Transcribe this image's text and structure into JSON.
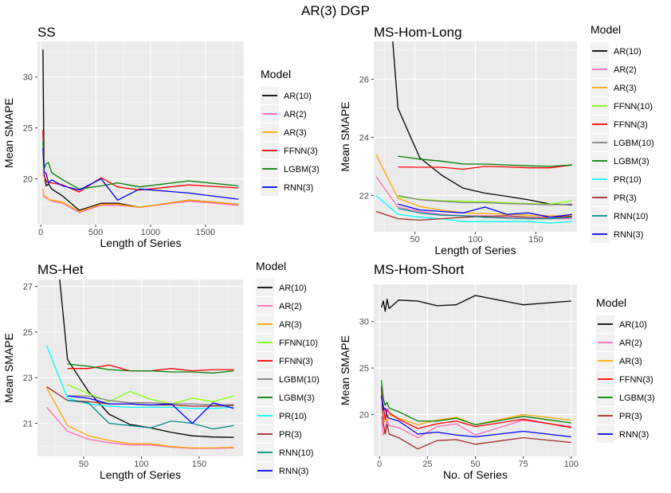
{
  "figure": {
    "title": "AR(3) DGP"
  },
  "chart_data": [
    {
      "type": "line",
      "title": "SS",
      "xlabel": "Length of Series",
      "ylabel": "Mean SMAPE",
      "xlim": [
        -30,
        1850
      ],
      "ylim": [
        15.5,
        33.5
      ],
      "xticks": [
        0,
        500,
        1000,
        1500
      ],
      "yticks": [
        20,
        25,
        30
      ],
      "legend_title": "Model",
      "series": [
        {
          "name": "AR(10)",
          "color": "#000000",
          "x": [
            20,
            30,
            50,
            70,
            100,
            200,
            350,
            550,
            700,
            900,
            1350,
            1800
          ],
          "y": [
            32.7,
            20.5,
            19.3,
            19.5,
            19.0,
            18.3,
            16.9,
            17.6,
            17.6,
            17.2,
            17.9,
            17.5
          ]
        },
        {
          "name": "AR(2)",
          "color": "#ff69b4",
          "x": [
            20,
            30,
            50,
            70,
            100,
            200,
            350,
            550,
            700,
            900,
            1350,
            1800
          ],
          "y": [
            18.5,
            18.2,
            18.1,
            18.0,
            17.8,
            17.6,
            16.7,
            17.4,
            17.4,
            17.2,
            17.8,
            17.4
          ]
        },
        {
          "name": "AR(3)",
          "color": "#ffa500",
          "x": [
            20,
            30,
            50,
            70,
            100,
            200,
            350,
            550,
            700,
            900,
            1350,
            1800
          ],
          "y": [
            19.0,
            18.3,
            18.2,
            18.0,
            17.9,
            17.7,
            16.8,
            17.5,
            17.5,
            17.2,
            17.9,
            17.5
          ]
        },
        {
          "name": "FFNN(3)",
          "color": "#ff0000",
          "x": [
            20,
            30,
            50,
            70,
            100,
            200,
            350,
            550,
            700,
            900,
            1350,
            1800
          ],
          "y": [
            24.8,
            20.3,
            19.8,
            19.6,
            19.6,
            19.4,
            18.7,
            20.1,
            19.2,
            18.9,
            19.4,
            19.1
          ]
        },
        {
          "name": "LGBM(3)",
          "color": "#008000",
          "x": [
            20,
            30,
            50,
            70,
            100,
            200,
            350,
            550,
            700,
            900,
            1350,
            1800
          ],
          "y": [
            23.7,
            21.0,
            21.5,
            21.6,
            20.6,
            19.9,
            19.0,
            19.3,
            19.6,
            19.2,
            19.8,
            19.3
          ]
        },
        {
          "name": "RNN(3)",
          "color": "#0000ff",
          "x": [
            20,
            30,
            50,
            70,
            100,
            200,
            350,
            550,
            700,
            900,
            1350,
            1800
          ],
          "y": [
            23.0,
            20.7,
            20.5,
            19.6,
            19.9,
            19.3,
            18.9,
            20.0,
            17.9,
            19.0,
            18.6,
            18.0
          ]
        }
      ]
    },
    {
      "type": "line",
      "title": "MS-Hom-Long",
      "xlabel": "Length of Series",
      "ylabel": "Mean SMAPE",
      "xlim": [
        16,
        184
      ],
      "ylim": [
        20.75,
        27.3
      ],
      "xticks": [
        50,
        100,
        150
      ],
      "yticks": [
        22,
        24,
        26
      ],
      "legend_title": "Model",
      "series": [
        {
          "name": "AR(10)",
          "color": "#000000",
          "x": [
            30,
            36,
            54,
            72,
            90,
            108,
            126,
            144,
            162,
            180
          ],
          "y": [
            28.2,
            25.0,
            23.3,
            22.7,
            22.25,
            22.08,
            21.97,
            21.85,
            21.7,
            21.68
          ]
        },
        {
          "name": "AR(2)",
          "color": "#ff69b4",
          "x": [
            18,
            36,
            54,
            72,
            90,
            108,
            126,
            144,
            162,
            180
          ],
          "y": [
            22.65,
            21.6,
            21.45,
            21.35,
            21.3,
            21.3,
            21.25,
            21.2,
            21.2,
            21.2
          ]
        },
        {
          "name": "AR(3)",
          "color": "#ffa500",
          "x": [
            18,
            36,
            54,
            72,
            90,
            108,
            126,
            144,
            162,
            180
          ],
          "y": [
            23.4,
            21.9,
            21.62,
            21.5,
            21.4,
            21.38,
            21.35,
            21.32,
            21.3,
            21.3
          ]
        },
        {
          "name": "FFNN(10)",
          "color": "#80ff00",
          "x": [
            36,
            54,
            72,
            90,
            108,
            126,
            144,
            162,
            180
          ],
          "y": [
            21.95,
            21.87,
            21.82,
            21.8,
            21.78,
            21.75,
            21.72,
            21.7,
            21.82
          ]
        },
        {
          "name": "FFNN(3)",
          "color": "#ff0000",
          "x": [
            36,
            54,
            72,
            90,
            108,
            126,
            144,
            162,
            180
          ],
          "y": [
            22.98,
            22.97,
            22.97,
            22.9,
            23.0,
            22.98,
            22.95,
            22.95,
            23.05
          ]
        },
        {
          "name": "LGBM(10)",
          "color": "#808080",
          "x": [
            36,
            54,
            72,
            90,
            108,
            126,
            144,
            162,
            180
          ],
          "y": [
            22.0,
            21.85,
            21.8,
            21.75,
            21.75,
            21.72,
            21.7,
            21.68,
            21.7
          ]
        },
        {
          "name": "LGBM(3)",
          "color": "#008000",
          "x": [
            36,
            54,
            72,
            90,
            108,
            126,
            144,
            162,
            180
          ],
          "y": [
            23.35,
            23.25,
            23.18,
            23.08,
            23.08,
            23.05,
            23.02,
            23.0,
            23.05
          ]
        },
        {
          "name": "PR(10)",
          "color": "#00ffff",
          "x": [
            18,
            36,
            54,
            72,
            90,
            108,
            126,
            144,
            162,
            180
          ],
          "y": [
            22.0,
            21.35,
            21.25,
            21.2,
            21.1,
            21.1,
            21.1,
            21.1,
            21.05,
            21.1
          ]
        },
        {
          "name": "PR(3)",
          "color": "#a52a2a",
          "x": [
            18,
            36,
            54,
            72,
            90,
            108,
            126,
            144,
            162,
            180
          ],
          "y": [
            21.45,
            21.2,
            21.15,
            21.2,
            21.25,
            21.28,
            21.3,
            21.25,
            21.25,
            21.28
          ]
        },
        {
          "name": "RNN(10)",
          "color": "#008b8b",
          "x": [
            36,
            54,
            72,
            90,
            108,
            126,
            144,
            162,
            180
          ],
          "y": [
            21.55,
            21.4,
            21.32,
            21.3,
            21.25,
            21.22,
            21.2,
            21.2,
            21.25
          ]
        },
        {
          "name": "RNN(3)",
          "color": "#0000ff",
          "x": [
            36,
            54,
            72,
            90,
            108,
            126,
            144,
            162,
            180
          ],
          "y": [
            21.7,
            21.5,
            21.45,
            21.4,
            21.6,
            21.35,
            21.4,
            21.25,
            21.35
          ]
        }
      ]
    },
    {
      "type": "line",
      "title": "MS-Het",
      "xlabel": "Length of Series",
      "ylabel": "Mean SMAPE",
      "xlim": [
        10,
        188
      ],
      "ylim": [
        19.55,
        27.3
      ],
      "xticks": [
        50,
        100,
        150
      ],
      "yticks": [
        21,
        23,
        25,
        27
      ],
      "legend_title": "Model",
      "series": [
        {
          "name": "AR(10)",
          "color": "#000000",
          "x": [
            27,
            36,
            54,
            72,
            90,
            108,
            126,
            144,
            162,
            180
          ],
          "y": [
            28.5,
            23.8,
            22.4,
            21.4,
            20.95,
            20.8,
            20.6,
            20.45,
            20.4,
            20.38
          ]
        },
        {
          "name": "AR(2)",
          "color": "#ff69b4",
          "x": [
            18,
            36,
            54,
            72,
            90,
            108,
            126,
            144,
            162,
            180
          ],
          "y": [
            21.7,
            20.65,
            20.3,
            20.15,
            20.05,
            20.05,
            19.95,
            19.9,
            19.9,
            19.92
          ]
        },
        {
          "name": "AR(3)",
          "color": "#ffa500",
          "x": [
            18,
            36,
            54,
            72,
            90,
            108,
            126,
            144,
            162,
            180
          ],
          "y": [
            22.55,
            20.9,
            20.45,
            20.25,
            20.1,
            20.1,
            19.98,
            19.92,
            19.92,
            19.95
          ]
        },
        {
          "name": "FFNN(10)",
          "color": "#80ff00",
          "x": [
            36,
            54,
            72,
            90,
            108,
            126,
            144,
            162,
            180
          ],
          "y": [
            22.7,
            22.3,
            21.95,
            22.4,
            22.05,
            21.85,
            22.1,
            21.95,
            22.2
          ]
        },
        {
          "name": "FFNN(3)",
          "color": "#ff0000",
          "x": [
            36,
            54,
            72,
            90,
            108,
            126,
            144,
            162,
            180
          ],
          "y": [
            23.4,
            23.4,
            23.55,
            23.3,
            23.3,
            23.4,
            23.3,
            23.35,
            23.35
          ]
        },
        {
          "name": "LGBM(10)",
          "color": "#808080",
          "x": [
            36,
            54,
            72,
            90,
            108,
            126,
            144,
            162,
            180
          ],
          "y": [
            22.2,
            22.2,
            22.0,
            21.9,
            21.9,
            21.85,
            21.85,
            21.8,
            21.82
          ]
        },
        {
          "name": "LGBM(3)",
          "color": "#008000",
          "x": [
            36,
            54,
            72,
            90,
            108,
            126,
            144,
            162,
            180
          ],
          "y": [
            23.6,
            23.5,
            23.35,
            23.3,
            23.3,
            23.25,
            23.25,
            23.2,
            23.3
          ]
        },
        {
          "name": "PR(10)",
          "color": "#00ffff",
          "x": [
            18,
            36,
            54,
            72,
            90,
            108,
            126,
            144,
            162,
            180
          ],
          "y": [
            24.4,
            22.1,
            21.85,
            21.75,
            21.7,
            21.7,
            21.7,
            21.65,
            21.65,
            21.7
          ]
        },
        {
          "name": "PR(3)",
          "color": "#a52a2a",
          "x": [
            18,
            36,
            54,
            72,
            90,
            108,
            126,
            144,
            162,
            180
          ],
          "y": [
            22.6,
            22.0,
            21.95,
            21.85,
            21.85,
            21.8,
            21.8,
            21.75,
            21.75,
            21.78
          ]
        },
        {
          "name": "RNN(10)",
          "color": "#008b8b",
          "x": [
            36,
            54,
            72,
            90,
            108,
            126,
            144,
            162,
            180
          ],
          "y": [
            22.0,
            21.9,
            21.0,
            20.9,
            20.8,
            21.1,
            21.0,
            20.75,
            20.9
          ]
        },
        {
          "name": "RNN(3)",
          "color": "#0000ff",
          "x": [
            36,
            54,
            72,
            90,
            108,
            126,
            144,
            162,
            180
          ],
          "y": [
            22.2,
            22.1,
            21.85,
            21.85,
            21.8,
            21.85,
            21.0,
            21.9,
            21.65
          ]
        }
      ]
    },
    {
      "type": "line",
      "title": "MS-Hom-Short",
      "xlabel": "No. of Series",
      "ylabel": "Mean SMAPE",
      "xlim": [
        -3,
        103
      ],
      "ylim": [
        15.5,
        34.0
      ],
      "xticks": [
        0,
        25,
        50,
        75,
        100
      ],
      "yticks": [
        20,
        25,
        30
      ],
      "legend_title": "Model",
      "series": [
        {
          "name": "AR(10)",
          "color": "#000000",
          "x": [
            1,
            2,
            3,
            4,
            5,
            10,
            20,
            30,
            40,
            50,
            75,
            100
          ],
          "y": [
            31.5,
            32.2,
            31.1,
            32.4,
            31.4,
            32.3,
            32.2,
            31.7,
            31.8,
            32.8,
            31.8,
            32.2
          ]
        },
        {
          "name": "AR(2)",
          "color": "#ff69b4",
          "x": [
            1,
            2,
            3,
            4,
            5,
            10,
            20,
            30,
            40,
            50,
            75,
            100
          ],
          "y": [
            19.8,
            17.8,
            18.5,
            19.5,
            18.8,
            18.6,
            17.5,
            18.7,
            19.0,
            17.8,
            19.4,
            18.7
          ]
        },
        {
          "name": "AR(3)",
          "color": "#ffa500",
          "x": [
            1,
            2,
            3,
            4,
            5,
            10,
            20,
            30,
            40,
            50,
            75,
            100
          ],
          "y": [
            21.0,
            19.8,
            19.2,
            19.8,
            20.0,
            19.6,
            18.9,
            19.4,
            19.7,
            18.9,
            20.0,
            19.4
          ]
        },
        {
          "name": "FFNN(3)",
          "color": "#ff0000",
          "x": [
            1,
            2,
            3,
            4,
            5,
            10,
            20,
            30,
            40,
            50,
            75,
            100
          ],
          "y": [
            22.2,
            21.0,
            19.5,
            20.6,
            20.2,
            19.5,
            18.5,
            19.0,
            19.3,
            18.7,
            19.5,
            18.6
          ]
        },
        {
          "name": "LGBM(3)",
          "color": "#008000",
          "x": [
            1,
            2,
            3,
            4,
            5,
            10,
            20,
            30,
            40,
            50,
            75,
            100
          ],
          "y": [
            23.7,
            21.7,
            21.0,
            21.3,
            20.7,
            20.3,
            19.3,
            19.3,
            19.6,
            18.9,
            19.8,
            19.1
          ]
        },
        {
          "name": "PR(3)",
          "color": "#a52a2a",
          "x": [
            1,
            2,
            3,
            4,
            5,
            10,
            20,
            30,
            40,
            50,
            75,
            100
          ],
          "y": [
            23.0,
            19.0,
            17.9,
            19.0,
            17.9,
            17.5,
            16.3,
            17.2,
            17.3,
            16.8,
            17.5,
            17.0
          ]
        },
        {
          "name": "RNN(3)",
          "color": "#0000ff",
          "x": [
            1,
            2,
            3,
            4,
            5,
            10,
            20,
            30,
            40,
            50,
            75,
            100
          ],
          "y": [
            22.0,
            20.5,
            20.7,
            19.8,
            19.6,
            19.3,
            17.9,
            18.1,
            17.8,
            17.6,
            18.2,
            17.6
          ]
        }
      ]
    }
  ]
}
